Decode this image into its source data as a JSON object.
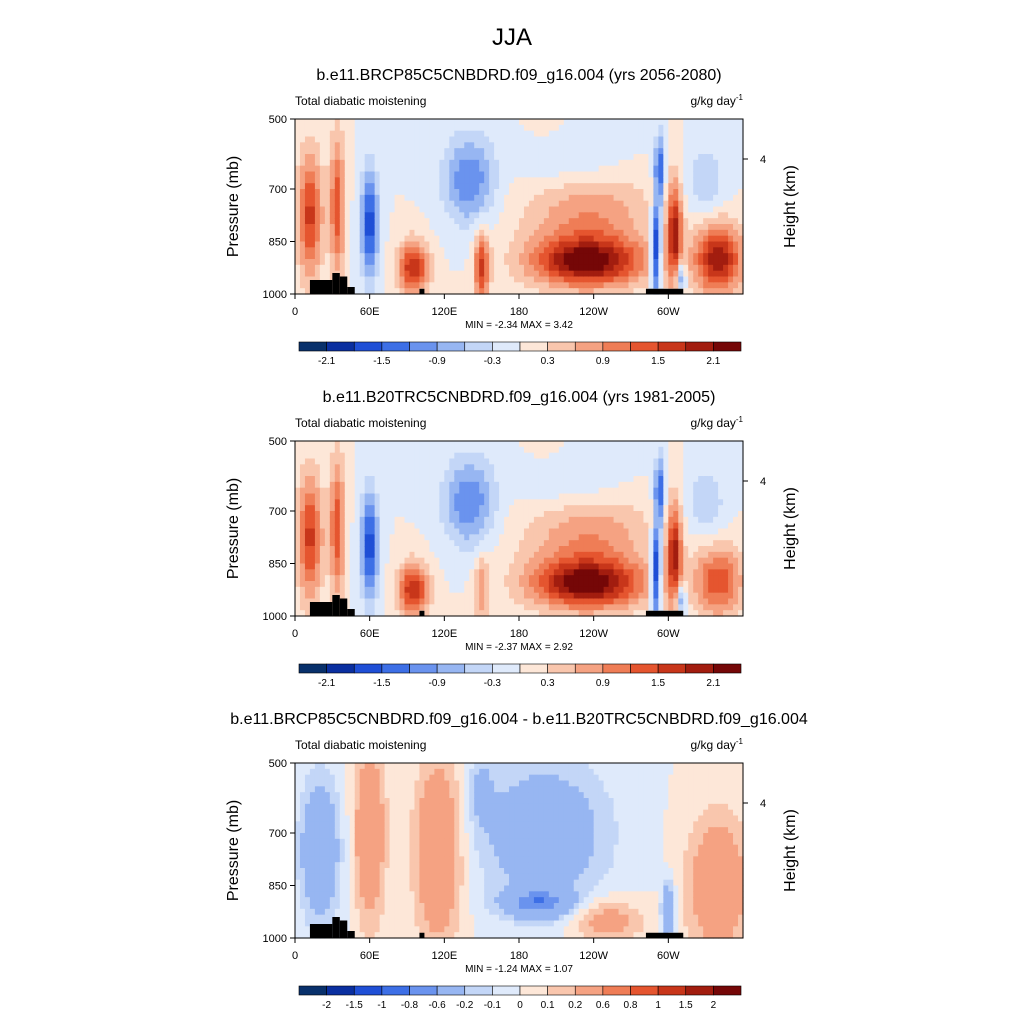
{
  "figure_title": "JJA",
  "chart_data": [
    {
      "type": "heatmap",
      "title": "b.e11.BRCP85C5CNBDRD.f09_g16.004 (yrs 2056-2080)",
      "left_label": "Total diabatic moistening",
      "units_main": "g/kg day",
      "units_sup": "-1",
      "ylabel": "Pressure (mb)",
      "ylabel_right": "Height (km)",
      "y_ticks": [
        "500",
        "700",
        "850",
        "1000"
      ],
      "y_tick_values": [
        500,
        700,
        850,
        1000
      ],
      "right_ticks": [
        "4"
      ],
      "x_ticks": [
        "0",
        "60E",
        "120E",
        "180",
        "120W",
        "60W"
      ],
      "x_tick_values": [
        0,
        60,
        120,
        180,
        240,
        300
      ],
      "xlim": [
        0,
        360
      ],
      "ylim": [
        500,
        1000
      ],
      "stats": "MIN =  -2.34  MAX =   3.42",
      "min": -2.34,
      "max": 3.42,
      "colorbar_labels": [
        "-2.1",
        "-1.5",
        "-0.9",
        "-0.3",
        "0.3",
        "0.9",
        "1.5",
        "2.1"
      ]
    },
    {
      "type": "heatmap",
      "title": "b.e11.B20TRC5CNBDRD.f09_g16.004 (yrs 1981-2005)",
      "left_label": "Total diabatic moistening",
      "units_main": "g/kg day",
      "units_sup": "-1",
      "ylabel": "Pressure (mb)",
      "ylabel_right": "Height (km)",
      "y_ticks": [
        "500",
        "700",
        "850",
        "1000"
      ],
      "y_tick_values": [
        500,
        700,
        850,
        1000
      ],
      "right_ticks": [
        "4"
      ],
      "x_ticks": [
        "0",
        "60E",
        "120E",
        "180",
        "120W",
        "60W"
      ],
      "x_tick_values": [
        0,
        60,
        120,
        180,
        240,
        300
      ],
      "xlim": [
        0,
        360
      ],
      "ylim": [
        500,
        1000
      ],
      "stats": "MIN =  -2.37  MAX =   2.92",
      "min": -2.37,
      "max": 2.92,
      "colorbar_labels": [
        "-2.1",
        "-1.5",
        "-0.9",
        "-0.3",
        "0.3",
        "0.9",
        "1.5",
        "2.1"
      ]
    },
    {
      "type": "heatmap",
      "title": "b.e11.BRCP85C5CNBDRD.f09_g16.004 - b.e11.B20TRC5CNBDRD.f09_g16.004",
      "left_label": "Total diabatic moistening",
      "units_main": "g/kg day",
      "units_sup": "-1",
      "ylabel": "Pressure (mb)",
      "ylabel_right": "Height (km)",
      "y_ticks": [
        "500",
        "700",
        "850",
        "1000"
      ],
      "y_tick_values": [
        500,
        700,
        850,
        1000
      ],
      "right_ticks": [
        "4"
      ],
      "x_ticks": [
        "0",
        "60E",
        "120E",
        "180",
        "120W",
        "60W"
      ],
      "x_tick_values": [
        0,
        60,
        120,
        180,
        240,
        300
      ],
      "xlim": [
        0,
        360
      ],
      "ylim": [
        500,
        1000
      ],
      "stats": "MIN =  -1.24  MAX =   1.07",
      "min": -1.24,
      "max": 1.07,
      "colorbar_labels": [
        "-2",
        "-1.5",
        "-1",
        "-0.8",
        "-0.6",
        "-0.2",
        "-0.1",
        "0",
        "0.1",
        "0.2",
        "0.6",
        "0.8",
        "1",
        "1.5",
        "2"
      ]
    }
  ],
  "colormap": [
    "#08306b",
    "#0a2fa0",
    "#1f4fd6",
    "#3d6fe6",
    "#6a93ee",
    "#97b6f2",
    "#c3d6f7",
    "#dfeafb",
    "#fde7d8",
    "#f9c6ad",
    "#f5a282",
    "#ef7d56",
    "#e5552f",
    "#c8361a",
    "#a21d0f",
    "#750707"
  ],
  "topography_color": "#000000"
}
